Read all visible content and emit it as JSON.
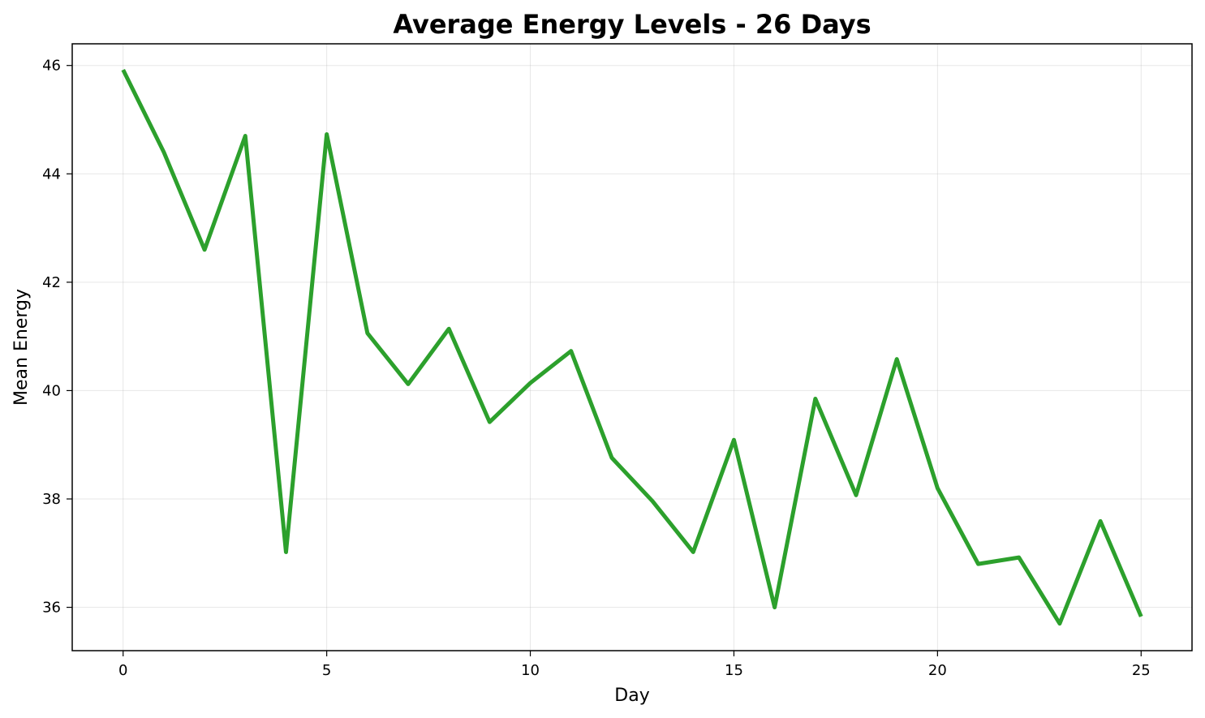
{
  "chart_data": {
    "type": "line",
    "title": "Average Energy Levels - 26 Days",
    "xlabel": "Day",
    "ylabel": "Mean Energy",
    "xlim": [
      -1.25,
      26.25
    ],
    "ylim": [
      35.2,
      46.4
    ],
    "xticks": [
      0,
      5,
      10,
      15,
      20,
      25
    ],
    "yticks": [
      36,
      38,
      40,
      42,
      44,
      46
    ],
    "grid": true,
    "legend": "none",
    "line_color": "#2ca02c",
    "x": [
      0,
      1,
      2,
      3,
      4,
      5,
      6,
      7,
      8,
      9,
      10,
      11,
      12,
      13,
      14,
      15,
      16,
      17,
      18,
      19,
      20,
      21,
      22,
      23,
      24,
      25
    ],
    "series": [
      {
        "values": [
          45.92,
          44.4,
          42.6,
          44.7,
          37.02,
          44.73,
          41.06,
          40.12,
          41.14,
          39.42,
          40.14,
          40.73,
          38.76,
          37.96,
          37.02,
          39.09,
          36.0,
          39.85,
          38.07,
          40.58,
          38.2,
          36.8,
          36.92,
          35.7,
          37.59,
          35.83
        ]
      }
    ]
  }
}
